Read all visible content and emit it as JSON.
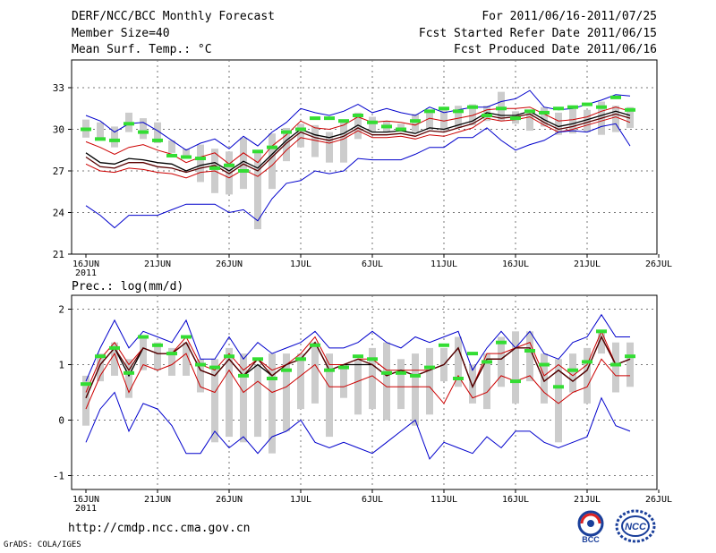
{
  "header": {
    "title": "DERF/NCC/BCC Monthly Forecast",
    "member_size": "Member Size=40",
    "variable": "Mean Surf. Temp.: °C",
    "forecast_period": "For 2011/06/16-2011/07/25",
    "started_refer": "Fcst Started Refer Date 2011/06/15",
    "produced": "Fcst Produced Date 2011/06/16"
  },
  "footer": {
    "url": "http://cmdp.ncc.cma.gov.cn",
    "grads": "GrADS: COLA/IGES",
    "logo_bcc": "BCC",
    "logo_ncc": "NCC"
  },
  "colors": {
    "envelope": "#0000cc",
    "percentile": "#cc0000",
    "mean": "#000000",
    "median": "#5a0000",
    "observed_marker": "#33dd33",
    "spread_bar": "#cccccc",
    "grid": "#777777"
  },
  "chart_data": [
    {
      "type": "line",
      "title": "Mean Surf. Temp.: °C",
      "x_tick_labels": [
        "16JUN",
        "21JUN",
        "26JUN",
        "1JUL",
        "6JUL",
        "11JUL",
        "16JUL",
        "21JUL",
        "26JUL"
      ],
      "x_year_label": "2011",
      "ylim": [
        21,
        35
      ],
      "y_ticks": [
        21,
        24,
        27,
        30,
        33
      ],
      "days": 39,
      "series": [
        {
          "name": "max",
          "values": [
            31.0,
            30.6,
            29.8,
            30.4,
            30.5,
            29.9,
            29.2,
            28.5,
            29.0,
            29.3,
            28.6,
            29.5,
            28.8,
            29.8,
            30.5,
            31.5,
            31.2,
            31.0,
            31.3,
            31.8,
            31.2,
            31.5,
            31.2,
            31.0,
            31.6,
            31.2,
            31.4,
            31.6,
            31.6,
            32.0,
            32.2,
            32.8,
            31.6,
            31.4,
            31.5,
            31.8,
            32.1,
            32.5,
            32.4
          ]
        },
        {
          "name": "p90",
          "values": [
            29.1,
            28.7,
            28.2,
            28.7,
            28.9,
            28.5,
            28.2,
            27.6,
            28.0,
            28.3,
            27.5,
            28.3,
            27.6,
            28.8,
            29.6,
            30.6,
            30.1,
            30.0,
            30.3,
            30.9,
            30.5,
            30.6,
            30.5,
            30.3,
            30.8,
            30.6,
            30.8,
            31.0,
            31.4,
            31.5,
            31.5,
            31.6,
            31.1,
            30.6,
            30.7,
            30.9,
            31.3,
            31.6,
            31.3
          ]
        },
        {
          "name": "mean",
          "values": [
            28.3,
            27.6,
            27.5,
            27.9,
            27.8,
            27.6,
            27.5,
            27.0,
            27.4,
            27.6,
            27.0,
            27.7,
            27.2,
            28.2,
            29.2,
            30.0,
            29.6,
            29.4,
            29.7,
            30.3,
            29.8,
            29.8,
            29.9,
            29.7,
            30.1,
            30.0,
            30.3,
            30.6,
            31.2,
            31.0,
            31.0,
            31.3,
            30.7,
            30.2,
            30.4,
            30.7,
            31.0,
            31.3,
            31.0
          ]
        },
        {
          "name": "median",
          "values": [
            28.0,
            27.3,
            27.2,
            27.6,
            27.6,
            27.3,
            27.2,
            26.9,
            27.2,
            27.4,
            26.8,
            27.5,
            27.0,
            28.0,
            29.0,
            29.8,
            29.4,
            29.2,
            29.5,
            30.1,
            29.6,
            29.6,
            29.7,
            29.5,
            29.9,
            29.8,
            30.1,
            30.4,
            31.0,
            30.8,
            30.9,
            31.1,
            30.5,
            30.0,
            30.2,
            30.5,
            30.8,
            31.1,
            30.8
          ]
        },
        {
          "name": "p10",
          "values": [
            27.5,
            27.0,
            26.9,
            27.2,
            27.1,
            26.9,
            26.8,
            26.5,
            26.9,
            27.0,
            26.5,
            27.1,
            26.6,
            27.4,
            28.5,
            29.4,
            29.2,
            29.0,
            29.3,
            29.9,
            29.4,
            29.4,
            29.5,
            29.3,
            29.6,
            29.5,
            29.8,
            30.1,
            30.8,
            30.6,
            30.7,
            30.9,
            30.3,
            29.8,
            30.0,
            30.3,
            30.6,
            30.9,
            30.5
          ]
        },
        {
          "name": "min",
          "values": [
            24.5,
            23.8,
            22.9,
            23.8,
            23.8,
            23.8,
            24.2,
            24.6,
            24.6,
            24.6,
            24.0,
            24.2,
            23.4,
            25.0,
            26.1,
            26.3,
            27.0,
            26.8,
            27.0,
            27.9,
            27.8,
            27.8,
            27.8,
            28.2,
            28.7,
            28.7,
            29.4,
            29.4,
            30.1,
            29.2,
            28.5,
            28.9,
            29.2,
            29.8,
            29.9,
            29.8,
            30.2,
            30.4,
            28.8
          ]
        }
      ],
      "spread_bars": [
        [
          30.7,
          29.4
        ],
        [
          30.5,
          29.3
        ],
        [
          30.2,
          28.7
        ],
        [
          31.2,
          29.8
        ],
        [
          30.8,
          29.3
        ],
        [
          30.5,
          29.0
        ],
        [
          29.2,
          28.3
        ],
        [
          28.6,
          28.1
        ],
        [
          28.9,
          26.2
        ],
        [
          28.6,
          25.4
        ],
        [
          28.4,
          25.3
        ],
        [
          29.4,
          25.7
        ],
        [
          28.4,
          22.8
        ],
        [
          29.7,
          25.7
        ],
        [
          30.1,
          27.7
        ],
        [
          30.4,
          28.7
        ],
        [
          30.3,
          28.0
        ],
        [
          29.8,
          27.6
        ],
        [
          30.6,
          27.6
        ],
        [
          31.2,
          29.3
        ],
        [
          30.9,
          29.8
        ],
        [
          30.6,
          29.8
        ],
        [
          30.4,
          29.9
        ],
        [
          31.1,
          29.8
        ],
        [
          31.3,
          30.0
        ],
        [
          31.5,
          29.9
        ],
        [
          31.7,
          30.1
        ],
        [
          31.8,
          30.3
        ],
        [
          31.7,
          30.6
        ],
        [
          32.7,
          30.6
        ],
        [
          31.3,
          30.4
        ],
        [
          31.3,
          29.9
        ],
        [
          31.6,
          30.2
        ],
        [
          31.2,
          29.6
        ],
        [
          31.6,
          29.7
        ],
        [
          31.4,
          29.8
        ],
        [
          32.0,
          29.6
        ],
        [
          31.7,
          29.8
        ],
        [
          31.6,
          30.1
        ]
      ],
      "markers": [
        30.0,
        29.3,
        29.2,
        30.4,
        29.8,
        29.2,
        28.1,
        28.0,
        27.9,
        27.2,
        27.4,
        27.0,
        28.4,
        28.7,
        29.8,
        30.0,
        30.8,
        30.8,
        30.6,
        31.0,
        30.5,
        30.2,
        30.0,
        30.6,
        31.3,
        31.5,
        31.3,
        31.6,
        31.0,
        31.5,
        30.8,
        31.3,
        31.2,
        31.5,
        31.6,
        31.8,
        31.6,
        32.3,
        31.4
      ]
    },
    {
      "type": "line",
      "title": "Prec.: log(mm/d)",
      "x_tick_labels": [
        "16JUN",
        "21JUN",
        "26JUN",
        "1JUL",
        "6JUL",
        "11JUL",
        "16JUL",
        "21JUL",
        "26JUL"
      ],
      "x_year_label": "2011",
      "ylim": [
        -1.25,
        2.25
      ],
      "y_ticks": [
        -1,
        0,
        1,
        2
      ],
      "days": 39,
      "series": [
        {
          "name": "max",
          "values": [
            0.7,
            1.3,
            1.8,
            1.3,
            1.6,
            1.5,
            1.4,
            1.8,
            1.1,
            1.1,
            1.5,
            1.1,
            1.4,
            1.2,
            1.3,
            1.4,
            1.6,
            1.3,
            1.3,
            1.4,
            1.6,
            1.4,
            1.3,
            1.5,
            1.4,
            1.5,
            1.6,
            0.9,
            1.3,
            1.6,
            1.3,
            1.6,
            1.2,
            1.1,
            1.4,
            1.5,
            1.9,
            1.5,
            1.5
          ]
        },
        {
          "name": "p90",
          "values": [
            0.5,
            1.1,
            1.4,
            1.0,
            1.3,
            1.2,
            1.2,
            1.5,
            1.0,
            0.9,
            1.2,
            0.9,
            1.1,
            0.9,
            1.0,
            1.2,
            1.5,
            1.0,
            1.0,
            1.1,
            1.1,
            0.9,
            0.9,
            0.9,
            0.9,
            1.0,
            1.3,
            0.6,
            1.2,
            1.2,
            1.3,
            1.4,
            0.8,
            1.0,
            0.8,
            1.0,
            1.6,
            1.0,
            1.1
          ]
        },
        {
          "name": "mean",
          "values": [
            0.4,
            1.0,
            1.3,
            0.8,
            1.3,
            1.2,
            1.2,
            1.4,
            0.9,
            0.8,
            1.1,
            0.8,
            1.0,
            0.8,
            1.0,
            1.1,
            1.4,
            0.9,
            1.0,
            1.0,
            1.0,
            0.8,
            0.9,
            0.8,
            0.9,
            1.0,
            1.3,
            0.6,
            1.1,
            1.1,
            1.3,
            1.3,
            0.7,
            0.9,
            0.7,
            0.9,
            1.5,
            1.0,
            1.1
          ]
        },
        {
          "name": "median",
          "values": [
            0.4,
            1.0,
            1.3,
            0.9,
            1.3,
            1.2,
            1.2,
            1.4,
            0.9,
            0.8,
            1.1,
            0.8,
            1.1,
            0.8,
            1.0,
            1.1,
            1.4,
            0.9,
            1.0,
            1.1,
            1.0,
            0.8,
            0.9,
            0.8,
            0.9,
            1.0,
            1.3,
            0.6,
            1.1,
            1.1,
            1.3,
            1.3,
            0.7,
            0.9,
            0.7,
            0.9,
            1.5,
            1.0,
            1.1
          ]
        },
        {
          "name": "p10",
          "values": [
            0.2,
            0.8,
            1.2,
            0.5,
            1.0,
            0.9,
            1.0,
            1.2,
            0.6,
            0.5,
            0.9,
            0.5,
            0.7,
            0.5,
            0.6,
            0.8,
            1.0,
            0.6,
            0.6,
            0.7,
            0.8,
            0.6,
            0.6,
            0.6,
            0.6,
            0.3,
            0.8,
            0.4,
            0.5,
            0.8,
            0.7,
            0.8,
            0.5,
            0.3,
            0.5,
            0.6,
            1.1,
            0.8,
            0.8
          ]
        },
        {
          "name": "min",
          "values": [
            -0.4,
            0.2,
            0.5,
            -0.2,
            0.3,
            0.2,
            -0.1,
            -0.6,
            -0.6,
            -0.2,
            -0.5,
            -0.3,
            -0.6,
            -0.3,
            -0.2,
            0.0,
            -0.4,
            -0.5,
            -0.4,
            -0.5,
            -0.6,
            -0.4,
            -0.2,
            0.0,
            -0.7,
            -0.4,
            -0.5,
            -0.6,
            -0.3,
            -0.5,
            -0.2,
            -0.2,
            -0.4,
            -0.5,
            -0.4,
            -0.3,
            0.4,
            -0.1,
            -0.2
          ]
        }
      ],
      "spread_bars": [
        [
          0.8,
          -0.1
        ],
        [
          1.2,
          0.7
        ],
        [
          1.4,
          0.8
        ],
        [
          1.1,
          0.4
        ],
        [
          1.5,
          0.9
        ],
        [
          1.4,
          0.9
        ],
        [
          1.3,
          0.8
        ],
        [
          1.4,
          0.8
        ],
        [
          1.1,
          0.5
        ],
        [
          1.1,
          -0.4
        ],
        [
          1.3,
          -0.3
        ],
        [
          1.2,
          -0.4
        ],
        [
          1.0,
          -0.3
        ],
        [
          1.2,
          -0.6
        ],
        [
          1.2,
          -0.2
        ],
        [
          1.2,
          0.2
        ],
        [
          1.4,
          0.3
        ],
        [
          1.2,
          -0.3
        ],
        [
          1.0,
          0.4
        ],
        [
          1.1,
          0.1
        ],
        [
          1.3,
          0.2
        ],
        [
          1.4,
          0.0
        ],
        [
          1.1,
          0.2
        ],
        [
          1.2,
          -0.1
        ],
        [
          1.3,
          0.1
        ],
        [
          1.3,
          0.7
        ],
        [
          1.5,
          0.6
        ],
        [
          1.0,
          0.3
        ],
        [
          1.2,
          0.2
        ],
        [
          1.5,
          0.6
        ],
        [
          1.6,
          0.3
        ],
        [
          1.6,
          0.7
        ],
        [
          1.2,
          0.3
        ],
        [
          1.1,
          -0.4
        ],
        [
          1.2,
          0.5
        ],
        [
          1.3,
          0.3
        ],
        [
          1.6,
          1.2
        ],
        [
          1.4,
          0.5
        ],
        [
          1.4,
          0.6
        ]
      ],
      "markers": [
        0.65,
        1.15,
        1.3,
        0.85,
        1.5,
        1.35,
        1.2,
        1.5,
        1.0,
        0.95,
        1.15,
        0.8,
        1.1,
        0.75,
        0.9,
        1.1,
        1.35,
        0.9,
        0.95,
        1.15,
        1.1,
        0.85,
        0.85,
        0.8,
        0.95,
        1.35,
        0.75,
        1.2,
        1.05,
        1.4,
        0.7,
        1.25,
        1.0,
        0.6,
        0.9,
        1.05,
        1.6,
        1.0,
        1.15
      ]
    }
  ]
}
